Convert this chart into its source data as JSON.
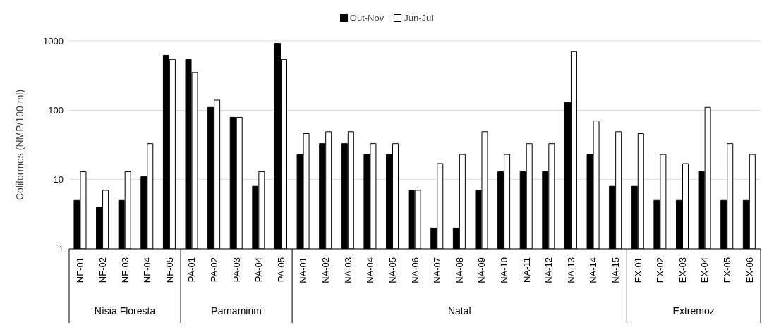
{
  "chart_data": {
    "type": "bar",
    "ylabel": "Coliformes (NMP/100 ml)",
    "categories": [
      "NF-01",
      "NF-02",
      "NF-03",
      "NF-04",
      "NF-05",
      "PA-01",
      "PA-02",
      "PA-03",
      "PA-04",
      "PA-05",
      "NA-01",
      "NA-02",
      "NA-03",
      "NA-04",
      "NA-05",
      "NA-06",
      "NA-07",
      "NA-08",
      "NA-09",
      "NA-10",
      "NA-11",
      "NA-12",
      "NA-13",
      "NA-14",
      "NA-15",
      "EX-01",
      "EX-02",
      "EX-03",
      "EX-04",
      "EX-05",
      "EX-06"
    ],
    "series": [
      {
        "name": "Out-Nov",
        "color": "#000000",
        "values": [
          5,
          4,
          5,
          11,
          620,
          540,
          110,
          79,
          8,
          920,
          23,
          33,
          33,
          23,
          23,
          7,
          2,
          2,
          7,
          13,
          13,
          13,
          130,
          23,
          8,
          8,
          5,
          5,
          13,
          5,
          5
        ]
      },
      {
        "name": "Jun-Jul",
        "color": "#ffffff",
        "values": [
          13,
          7,
          13,
          33,
          540,
          350,
          140,
          79,
          13,
          540,
          46,
          49,
          49,
          33,
          33,
          7,
          17,
          23,
          49,
          23,
          33,
          33,
          700,
          70,
          49,
          46,
          23,
          17,
          110,
          33,
          23
        ]
      }
    ],
    "annotations": [
      "Nísia Floresta",
      "Parnamirim",
      "Natal",
      "Extremoz"
    ],
    "ylim": [
      1,
      1000
    ],
    "yticks": [
      1,
      10,
      100,
      1000
    ],
    "log": true,
    "grid": "y",
    "legend": "top"
  }
}
